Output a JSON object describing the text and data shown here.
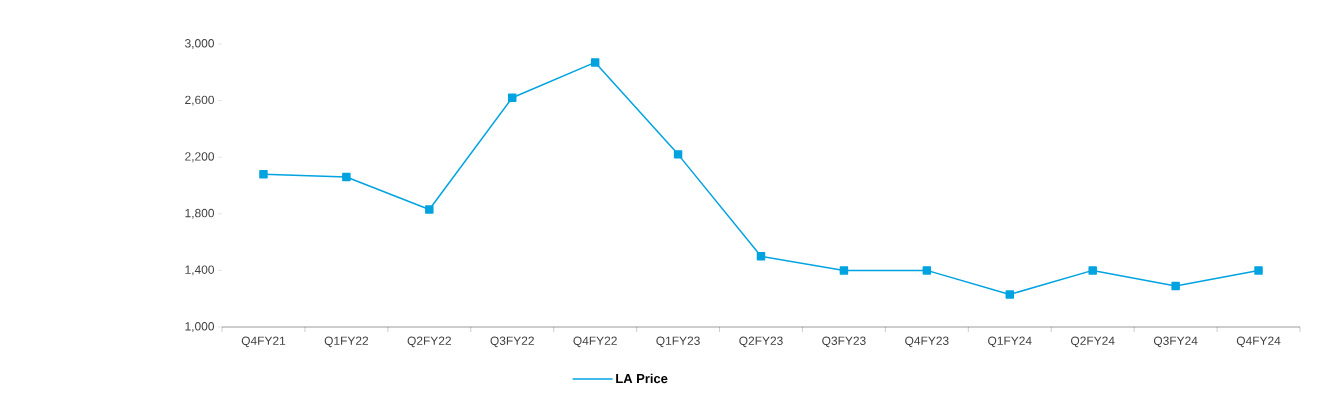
{
  "chart_data": {
    "type": "line",
    "categories": [
      "Q4FY21",
      "Q1FY22",
      "Q2FY22",
      "Q3FY22",
      "Q4FY22",
      "Q1FY23",
      "Q2FY23",
      "Q3FY23",
      "Q4FY23",
      "Q1FY24",
      "Q2FY24",
      "Q3FY24",
      "Q4FY24"
    ],
    "series": [
      {
        "name": "LA Price",
        "color": "#00a3e0",
        "values": [
          2080,
          2060,
          1830,
          2620,
          2870,
          2220,
          1500,
          1400,
          1400,
          1230,
          1400,
          1290,
          1400
        ]
      }
    ],
    "ylim": [
      1000,
      3000
    ],
    "yticks": [
      {
        "value": 1000,
        "label": "1,000"
      },
      {
        "value": 1400,
        "label": "1,400"
      },
      {
        "value": 1800,
        "label": "1,800"
      },
      {
        "value": 2200,
        "label": "2,200"
      },
      {
        "value": 2600,
        "label": "2,600"
      },
      {
        "value": 3000,
        "label": "3,000"
      }
    ],
    "grid": false,
    "legend": "bottom",
    "marker": "square",
    "line_style": "solid"
  }
}
